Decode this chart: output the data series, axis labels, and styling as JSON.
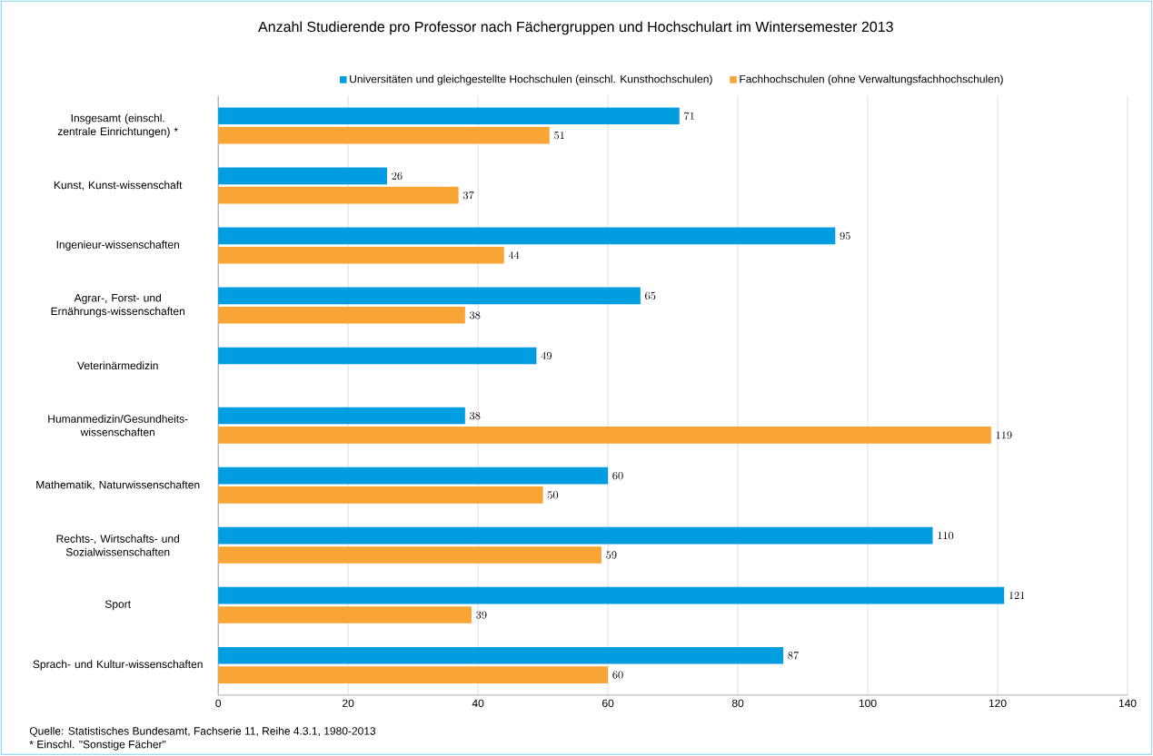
{
  "chart_data": {
    "type": "bar",
    "orientation": "horizontal",
    "title": "Anzahl Studierende pro Professor nach Fächergruppen und Hochschulart im Wintersemester 2013",
    "categories": [
      "Insgesamt (einschl. zentrale Einrichtungen) *",
      "Kunst, Kunst-wissenschaft",
      "Ingenieur-wissenschaften",
      "Agrar-, Forst- und Ernährungs-wissenschaften",
      "Veterinärmedizin",
      "Humanmedizin/Gesundheits-wissenschaften",
      "Mathematik, Naturwissenschaften",
      "Rechts-, Wirtschafts- und Sozialwissenschaften",
      "Sport",
      "Sprach- und Kultur-wissenschaften"
    ],
    "series": [
      {
        "name": "Universitäten und gleichgestellte Hochschulen (einschl. Kunsthochschulen)",
        "color": "#009de0",
        "values": [
          71,
          26,
          95,
          65,
          49,
          38,
          60,
          110,
          121,
          87
        ]
      },
      {
        "name": "Fachhochschulen (ohne Verwaltungsfachhochschulen)",
        "color": "#f9a535",
        "values": [
          51,
          37,
          44,
          38,
          null,
          119,
          50,
          59,
          39,
          60
        ]
      }
    ],
    "xlim": [
      0,
      140
    ],
    "xticks": [
      0,
      20,
      40,
      60,
      80,
      100,
      120,
      140
    ],
    "grid": "x",
    "legend": "top",
    "data_labels": true,
    "annotations": [
      "Quelle: Statistisches Bundesamt, Fachserie 11, Reihe 4.3.1, 1980-2013",
      "* Einschl. \"Sonstige Fächer\""
    ]
  }
}
